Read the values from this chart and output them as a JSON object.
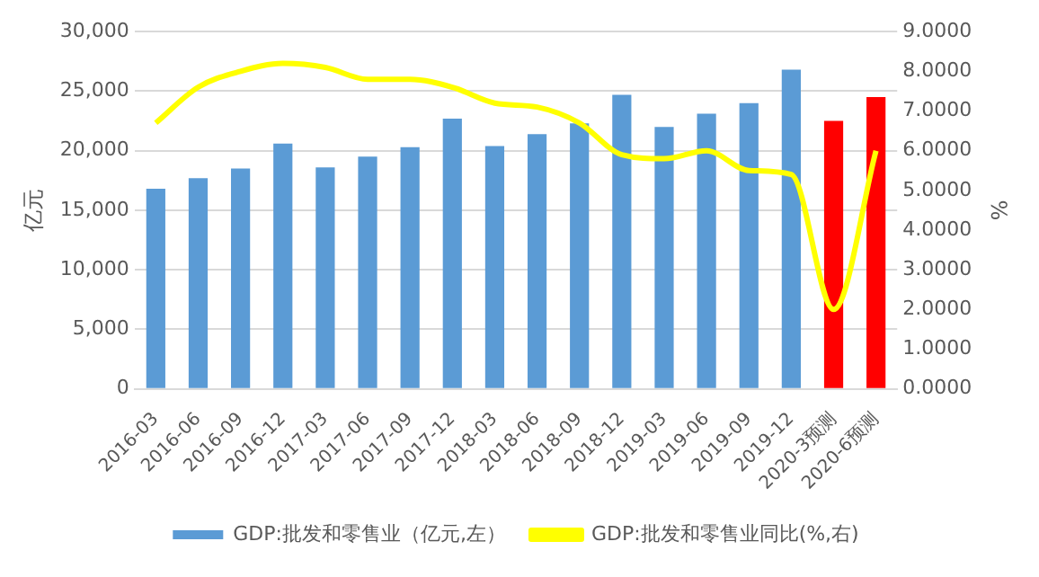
{
  "chart_data": {
    "type": "bar",
    "ylabel": "亿元",
    "y2label": "%",
    "categories": [
      "2016-03",
      "2016-06",
      "2016-09",
      "2016-12",
      "2017-03",
      "2017-06",
      "2017-09",
      "2017-12",
      "2018-03",
      "2018-06",
      "2018-09",
      "2018-12",
      "2019-03",
      "2019-06",
      "2019-09",
      "2019-12",
      "2020-3预测",
      "2020-6预测"
    ],
    "series": [
      {
        "name": "GDP:批发和零售业（亿元,左）",
        "color": "#5b9bd5",
        "colors": [
          "#5b9bd5",
          "#5b9bd5",
          "#5b9bd5",
          "#5b9bd5",
          "#5b9bd5",
          "#5b9bd5",
          "#5b9bd5",
          "#5b9bd5",
          "#5b9bd5",
          "#5b9bd5",
          "#5b9bd5",
          "#5b9bd5",
          "#5b9bd5",
          "#5b9bd5",
          "#5b9bd5",
          "#5b9bd5",
          "#ff0000",
          "#ff0000"
        ],
        "values": [
          16800,
          17700,
          18500,
          20600,
          18600,
          19500,
          20300,
          22700,
          20400,
          21400,
          22300,
          24700,
          22000,
          23100,
          24000,
          26800,
          22500,
          24500
        ]
      },
      {
        "name": "GDP:批发和零售业同比(%,右)",
        "type": "line",
        "axis": "y2",
        "color": "#ffff00",
        "values": [
          6.7,
          7.6,
          8.0,
          8.2,
          8.1,
          7.8,
          7.8,
          7.6,
          7.2,
          7.1,
          6.7,
          5.9,
          5.8,
          6.0,
          5.5,
          5.4,
          2.0,
          6.0
        ]
      }
    ],
    "ylim": [
      0,
      30000
    ],
    "yticks": [
      {
        "value": 0,
        "label": "0"
      },
      {
        "value": 5000,
        "label": "5,000"
      },
      {
        "value": 10000,
        "label": "10,000"
      },
      {
        "value": 15000,
        "label": "15,000"
      },
      {
        "value": 20000,
        "label": "20,000"
      },
      {
        "value": 25000,
        "label": "25,000"
      },
      {
        "value": 30000,
        "label": "30,000"
      }
    ],
    "y2lim": [
      0,
      9
    ],
    "y2ticks": [
      {
        "value": 0,
        "label": "0.0000"
      },
      {
        "value": 1,
        "label": "1.0000"
      },
      {
        "value": 2,
        "label": "2.0000"
      },
      {
        "value": 3,
        "label": "3.0000"
      },
      {
        "value": 4,
        "label": "4.0000"
      },
      {
        "value": 5,
        "label": "5.0000"
      },
      {
        "value": 6,
        "label": "6.0000"
      },
      {
        "value": 7,
        "label": "7.0000"
      },
      {
        "value": 8,
        "label": "8.0000"
      },
      {
        "value": 9,
        "label": "9.0000"
      }
    ],
    "grid": "y",
    "legend": "bottom",
    "marker": "none",
    "line_style": "solid"
  }
}
